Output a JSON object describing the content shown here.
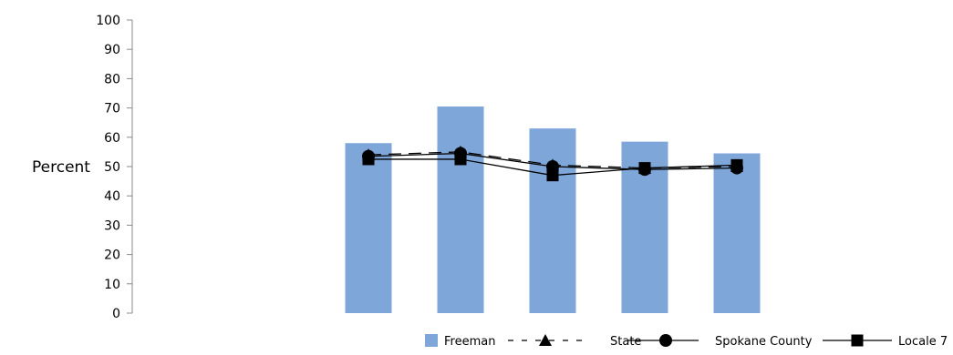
{
  "chart_data": {
    "type": "bar",
    "title": "",
    "xlabel": "",
    "ylabel": "Percent",
    "ylim": [
      0,
      100
    ],
    "yticks": [
      0,
      10,
      20,
      30,
      40,
      50,
      60,
      70,
      80,
      90,
      100
    ],
    "categories": [
      "",
      "",
      "",
      "",
      ""
    ],
    "grid": false,
    "legend_position": "bottom-right",
    "bars": {
      "name": "Freeman",
      "color": "#7ea6d8",
      "values": [
        58,
        70.5,
        63,
        58.5,
        54.5
      ]
    },
    "series": [
      {
        "name": "State",
        "style": "dashed",
        "marker": "triangle",
        "color": "#000000",
        "values": [
          54,
          55,
          50.5,
          49.5,
          50
        ]
      },
      {
        "name": "Spokane County",
        "style": "solid",
        "marker": "circle",
        "color": "#000000",
        "values": [
          53.5,
          54.5,
          50,
          49,
          49.5
        ]
      },
      {
        "name": "Locale 7",
        "style": "solid",
        "marker": "square",
        "color": "#000000",
        "values": [
          52.5,
          52.5,
          47,
          49.5,
          50.5
        ]
      }
    ]
  }
}
